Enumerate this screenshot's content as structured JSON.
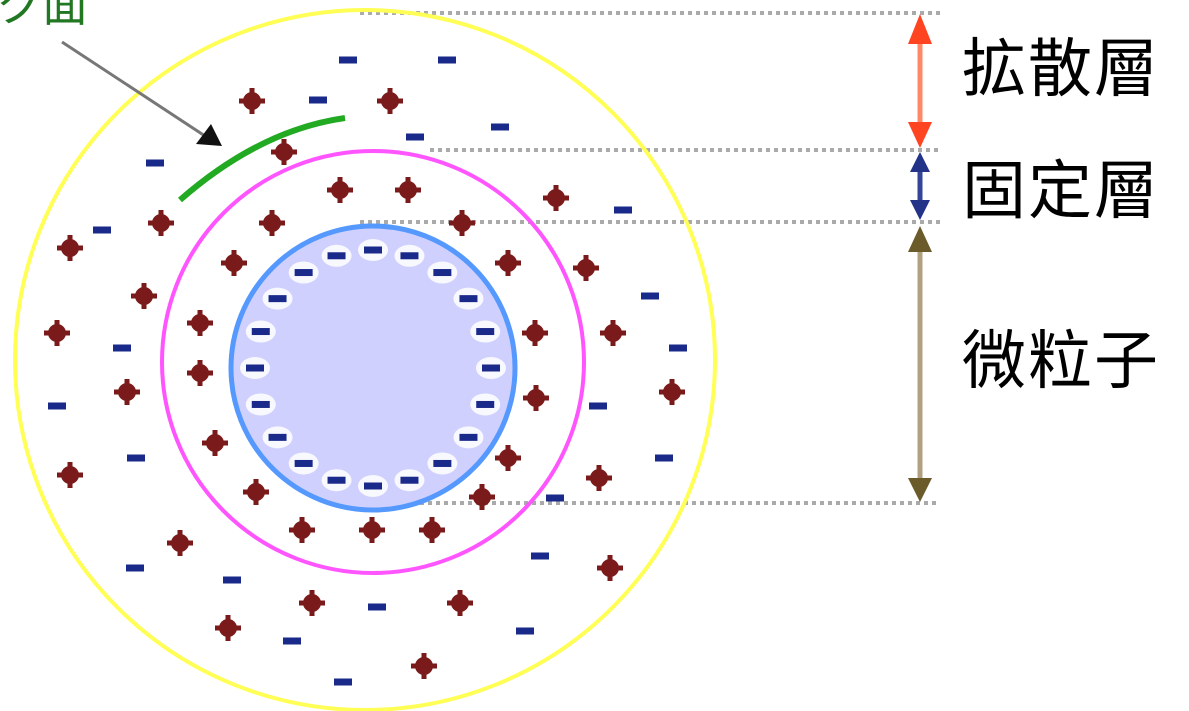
{
  "labels": {
    "slip_plane": "ク面",
    "diffuse_layer": "拡散層",
    "fixed_layer": "固定層",
    "particle": "微粒子"
  },
  "signs": {
    "positive": "+",
    "negative": "−"
  },
  "colors": {
    "diffuse_boundary": "#ffff55",
    "fixed_boundary": "#ff55ff",
    "particle_boundary": "#5599ff",
    "particle_fill": "#d0d0ff",
    "slip_plane_line": "#22aa22",
    "slip_label": "#227722",
    "positive_ion": "#7a1a1a",
    "negative_ion": "#1a2a8a",
    "diffuse_arrow": "#ff4422",
    "fixed_arrow": "#223388",
    "particle_arrow": "#6b5a2a",
    "guide_line": "#aaaaaa"
  }
}
